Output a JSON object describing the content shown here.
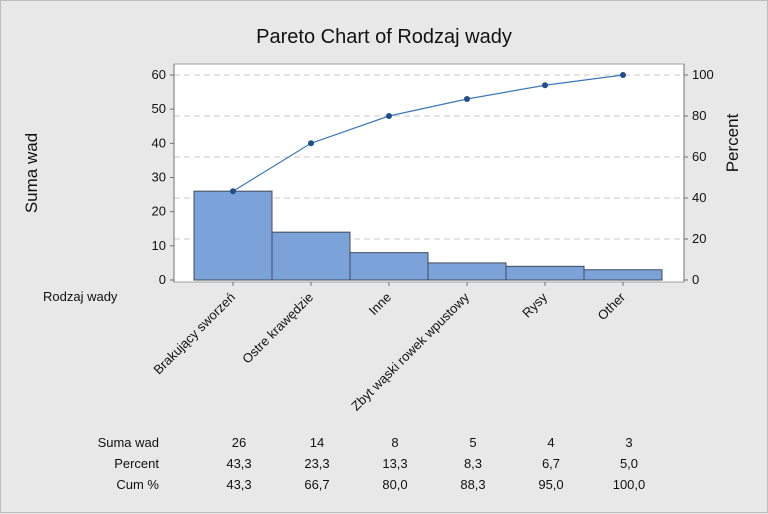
{
  "chart_data": {
    "type": "bar",
    "title": "Pareto Chart of Rodzaj wady",
    "xlabel": "Rodzaj wady",
    "ylabel": "Suma wad",
    "y2label": "Percent",
    "categories": [
      "Brakujący sworzeń",
      "Ostre krawędzie",
      "Inne",
      "Zbyt wąski rowek wpustowy",
      "Rysy",
      "Other"
    ],
    "values": [
      26,
      14,
      8,
      5,
      4,
      3
    ],
    "percent": [
      43.3,
      23.3,
      13.3,
      8.3,
      6.7,
      5.0
    ],
    "cum_percent": [
      43.3,
      66.7,
      80.0,
      88.3,
      95.0,
      100.0
    ],
    "ylim": [
      0,
      62.5
    ],
    "y2lim": [
      0,
      104.2
    ],
    "yticks": [
      "0",
      "10",
      "20",
      "30",
      "40",
      "50",
      "60"
    ],
    "y2ticks": [
      "0",
      "20",
      "40",
      "60",
      "80",
      "100"
    ],
    "grid": "dashed horizontal",
    "colors": {
      "bar": "#7ba3d9",
      "bar_edge": "#404a5a",
      "line": "#3a78b8",
      "point": "#1e4f8c",
      "plot_bg": "#ffffff",
      "frame_bg": "#e8e8e8"
    },
    "table": {
      "row_labels": [
        "Suma wad",
        "Percent",
        "Cum %"
      ],
      "rows": [
        [
          "26",
          "14",
          "8",
          "5",
          "4",
          "3"
        ],
        [
          "43,3",
          "23,3",
          "13,3",
          "8,3",
          "6,7",
          "5,0"
        ],
        [
          "43,3",
          "66,7",
          "80,0",
          "88,3",
          "95,0",
          "100,0"
        ]
      ]
    }
  }
}
